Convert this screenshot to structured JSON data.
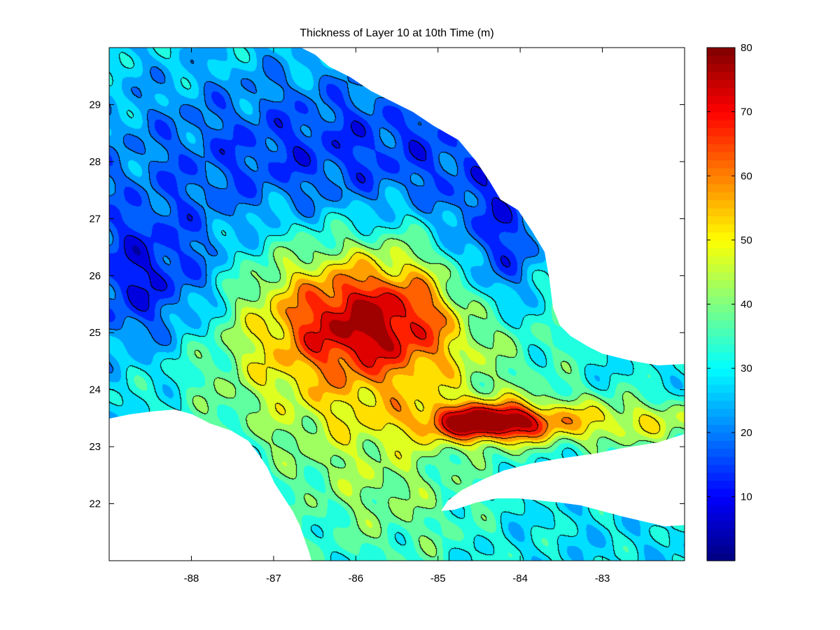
{
  "chart_data": {
    "type": "heatmap",
    "title": "Thickness of Layer 10 at 10th Time (m)",
    "xlabel": "",
    "ylabel": "",
    "xlim": [
      -89.0,
      -82.0
    ],
    "ylim": [
      21.0,
      30.0
    ],
    "x_ticks": [
      -88,
      -87,
      -86,
      -85,
      -84,
      -83
    ],
    "y_ticks": [
      22,
      23,
      24,
      25,
      26,
      27,
      28,
      29
    ],
    "colorbar": {
      "range": [
        0,
        80
      ],
      "ticks": [
        10,
        20,
        30,
        40,
        50,
        60,
        70,
        80
      ],
      "colormap": "jet"
    },
    "field_features": [
      {
        "feature": "background",
        "value": 28
      },
      {
        "feature": "northern-shelf-minimum",
        "value": 12
      },
      {
        "feature": "west-minimum",
        "value": 8
      },
      {
        "feature": "east-minimum",
        "value": 8
      },
      {
        "feature": "central-core-maximum",
        "value": 79
      },
      {
        "feature": "southeast-tongue-maximum",
        "value": 78
      },
      {
        "feature": "southern-plume",
        "value": 38
      }
    ]
  },
  "colors": {
    "land": "#ffffff",
    "axes": "#000000",
    "contour_line": "#000000"
  }
}
